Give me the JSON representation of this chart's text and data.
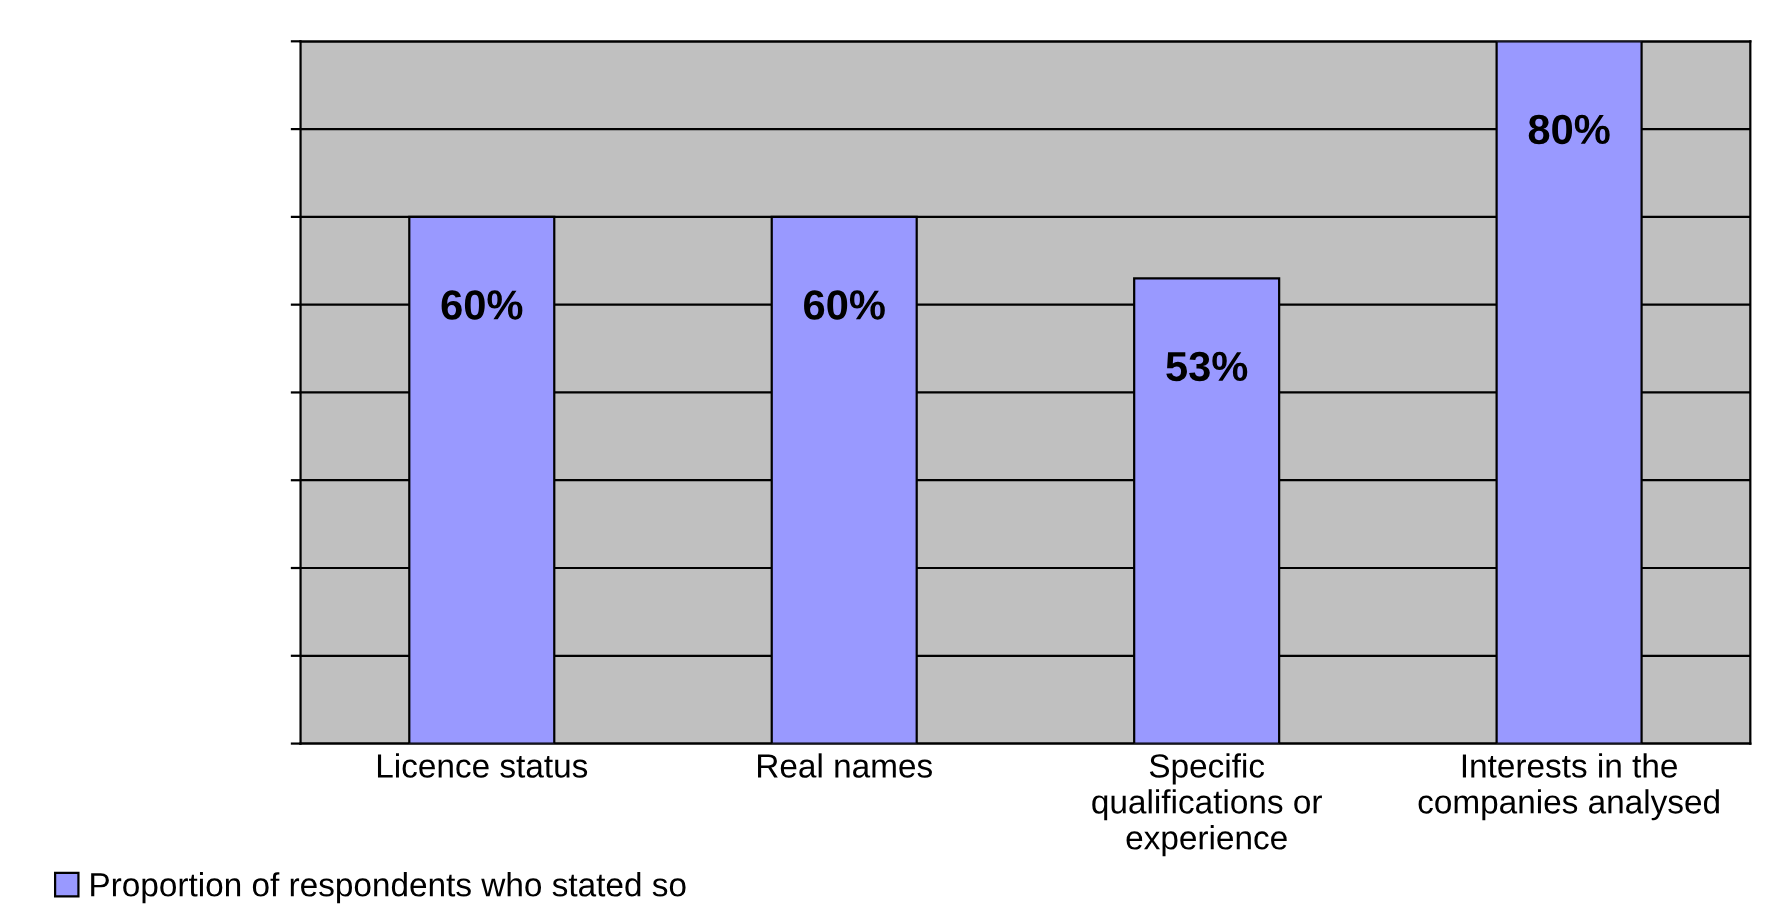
{
  "chart_data": {
    "type": "bar",
    "categories": [
      "Licence status",
      "Real names",
      "Specific qualifications or experience",
      "Interests in the companies analysed"
    ],
    "series": [
      {
        "name": "Proportion of respondents who stated so",
        "color": "#9999ff",
        "values": [
          60,
          60,
          53,
          80
        ],
        "value_labels": [
          "60%",
          "60%",
          "53%",
          "80%"
        ]
      }
    ],
    "ylim": [
      0,
      80
    ],
    "yticks": [
      {
        "value": 0,
        "label": null
      },
      {
        "value": 10,
        "label": null
      },
      {
        "value": 20,
        "label": null
      },
      {
        "value": 30,
        "label": null
      },
      {
        "value": 40,
        "label": null
      },
      {
        "value": 50,
        "label": null
      },
      {
        "value": 60,
        "label": null
      },
      {
        "value": 70,
        "label": null
      },
      {
        "value": 80,
        "label": null
      }
    ],
    "tick_labels": "x",
    "grid": "y",
    "legend": "bottom left"
  }
}
